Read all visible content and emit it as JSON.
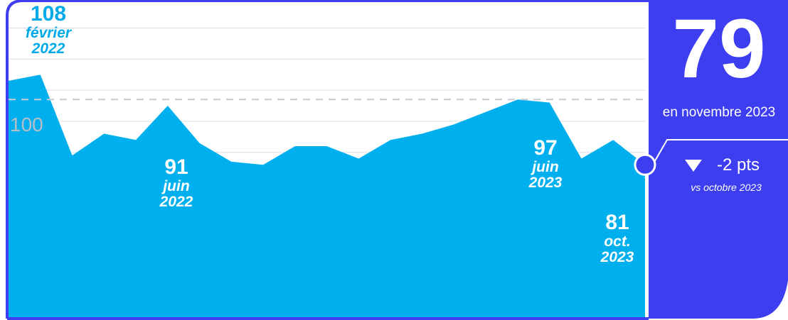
{
  "chart_data": {
    "type": "area",
    "x": [
      1,
      2,
      3,
      4,
      5,
      6,
      7,
      8,
      9,
      10,
      11,
      12,
      13,
      14,
      15,
      16,
      17,
      18,
      19,
      20,
      21
    ],
    "values": [
      106,
      108,
      82,
      89,
      87,
      98,
      86,
      80,
      79,
      85,
      85,
      81,
      87,
      89,
      92,
      96,
      100,
      99,
      81,
      87,
      79
    ],
    "reference_line": 100,
    "ylim": [
      30,
      132
    ],
    "grid": true,
    "annotations": [
      {
        "value": "108",
        "period": [
          "février",
          "2022"
        ]
      },
      {
        "value": "91",
        "period": [
          "juin",
          "2022"
        ]
      },
      {
        "value": "97",
        "period": [
          "juin",
          "2023"
        ]
      },
      {
        "value": "81",
        "period": [
          "oct.",
          "2023"
        ]
      }
    ],
    "colors": {
      "area": "#00b0ee",
      "panel": "#3d3ef0",
      "accent": "#00a9e8",
      "grid": "#d9dce4",
      "reference": "#c8ccd4"
    }
  },
  "panel": {
    "value": "79",
    "period": "en novembre 2023",
    "change": "-2 pts",
    "change_direction": "down",
    "change_icon": "down-triangle-icon",
    "comparison": "vs octobre 2023"
  }
}
